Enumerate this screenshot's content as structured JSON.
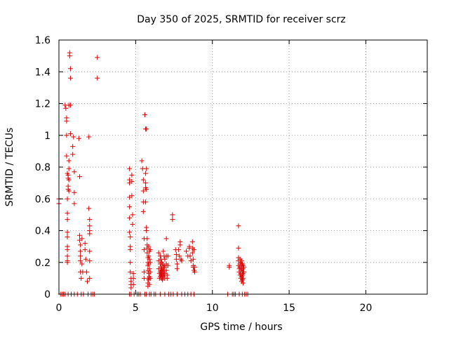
{
  "chart_data": {
    "type": "scatter",
    "title": "Day 350 of 2025, SRMTID for receiver scrz",
    "xlabel": "GPS time / hours",
    "ylabel": "SRMTID / TECUs",
    "xlim": [
      0,
      24
    ],
    "ylim": [
      0,
      1.6
    ],
    "xticks": [
      0,
      5,
      10,
      15,
      20
    ],
    "xtick_labels": [
      "0",
      "5",
      "10",
      "15",
      "20"
    ],
    "yticks": [
      0,
      0.2,
      0.4,
      0.6,
      0.8,
      1.0,
      1.2,
      1.4,
      1.6
    ],
    "ytick_labels": [
      "0",
      "0.2",
      "0.4",
      "0.6",
      "0.8",
      "1",
      "1.2",
      "1.4",
      "1.6"
    ],
    "grid": true,
    "marker": "+",
    "color": "#dd0000",
    "series": [
      {
        "name": "SRMTID",
        "points": [
          [
            0.0,
            0.6
          ],
          [
            0.0,
            0.57
          ],
          [
            0.1,
            0.0
          ],
          [
            0.2,
            0.0
          ],
          [
            0.3,
            0.0
          ],
          [
            0.4,
            0.0
          ],
          [
            0.4,
            1.19
          ],
          [
            0.45,
            1.17
          ],
          [
            0.5,
            1.11
          ],
          [
            0.5,
            1.09
          ],
          [
            0.5,
            1.0
          ],
          [
            0.5,
            0.87
          ],
          [
            0.55,
            0.76
          ],
          [
            0.55,
            0.6
          ],
          [
            0.55,
            0.51
          ],
          [
            0.55,
            0.47
          ],
          [
            0.55,
            0.39
          ],
          [
            0.55,
            0.36
          ],
          [
            0.55,
            0.3
          ],
          [
            0.55,
            0.28
          ],
          [
            0.55,
            0.24
          ],
          [
            0.55,
            0.21
          ],
          [
            0.55,
            0.2
          ],
          [
            0.6,
            0.75
          ],
          [
            0.6,
            0.73
          ],
          [
            0.6,
            0.68
          ],
          [
            0.6,
            0.66
          ],
          [
            0.6,
            0.0
          ],
          [
            0.65,
            1.19
          ],
          [
            0.65,
            0.84
          ],
          [
            0.65,
            0.79
          ],
          [
            0.65,
            0.72
          ],
          [
            0.65,
            0.65
          ],
          [
            0.7,
            1.5
          ],
          [
            0.7,
            1.52
          ],
          [
            0.75,
            1.42
          ],
          [
            0.75,
            1.36
          ],
          [
            0.75,
            1.19
          ],
          [
            0.75,
            1.01
          ],
          [
            0.8,
            0.0
          ],
          [
            0.9,
            0.88
          ],
          [
            0.9,
            0.93
          ],
          [
            0.95,
            0.99
          ],
          [
            1.0,
            0.77
          ],
          [
            1.0,
            0.64
          ],
          [
            1.0,
            0.57
          ],
          [
            1.0,
            0.0
          ],
          [
            1.2,
            0.0
          ],
          [
            1.3,
            0.98
          ],
          [
            1.35,
            0.74
          ],
          [
            1.35,
            0.37
          ],
          [
            1.35,
            0.34
          ],
          [
            1.4,
            0.31
          ],
          [
            1.4,
            0.27
          ],
          [
            1.4,
            0.24
          ],
          [
            1.4,
            0.21
          ],
          [
            1.4,
            0.14
          ],
          [
            1.45,
            0.1
          ],
          [
            1.45,
            0.0
          ],
          [
            1.5,
            0.35
          ],
          [
            1.5,
            0.19
          ],
          [
            1.55,
            0.14
          ],
          [
            1.6,
            0.0
          ],
          [
            1.7,
            0.32
          ],
          [
            1.7,
            0.28
          ],
          [
            1.75,
            0.22
          ],
          [
            1.8,
            0.14
          ],
          [
            1.85,
            0.08
          ],
          [
            1.9,
            0.0
          ],
          [
            1.95,
            0.99
          ],
          [
            1.95,
            0.54
          ],
          [
            2.0,
            0.47
          ],
          [
            2.0,
            0.43
          ],
          [
            2.0,
            0.4
          ],
          [
            2.0,
            0.38
          ],
          [
            2.0,
            0.27
          ],
          [
            2.0,
            0.21
          ],
          [
            2.0,
            0.1
          ],
          [
            2.1,
            0.0
          ],
          [
            2.2,
            0.0
          ],
          [
            2.3,
            0.0
          ],
          [
            2.5,
            1.49
          ],
          [
            2.5,
            1.36
          ],
          [
            4.6,
            0.79
          ],
          [
            4.6,
            0.72
          ],
          [
            4.6,
            0.7
          ],
          [
            4.6,
            0.61
          ],
          [
            4.6,
            0.55
          ],
          [
            4.6,
            0.48
          ],
          [
            4.6,
            0.39
          ],
          [
            4.6,
            0.0
          ],
          [
            4.65,
            0.36
          ],
          [
            4.65,
            0.3
          ],
          [
            4.65,
            0.28
          ],
          [
            4.65,
            0.2
          ],
          [
            4.65,
            0.14
          ],
          [
            4.7,
            0.1
          ],
          [
            4.7,
            0.08
          ],
          [
            4.7,
            0.06
          ],
          [
            4.7,
            0.04
          ],
          [
            4.7,
            0.0
          ],
          [
            4.75,
            0.75
          ],
          [
            4.75,
            0.71
          ],
          [
            4.75,
            0.62
          ],
          [
            4.8,
            0.5
          ],
          [
            4.8,
            0.44
          ],
          [
            4.85,
            0.13
          ],
          [
            4.85,
            0.1
          ],
          [
            4.85,
            0.06
          ],
          [
            4.9,
            0.0
          ],
          [
            5.1,
            0.0
          ],
          [
            5.2,
            0.0
          ],
          [
            5.3,
            0.0
          ],
          [
            5.4,
            0.84
          ],
          [
            5.45,
            0.79
          ],
          [
            5.5,
            0.72
          ],
          [
            5.5,
            0.65
          ],
          [
            5.5,
            0.58
          ],
          [
            5.5,
            0.52
          ],
          [
            5.55,
            0.35
          ],
          [
            5.55,
            0.28
          ],
          [
            5.55,
            0.14
          ],
          [
            5.55,
            0.1
          ],
          [
            5.6,
            0.0
          ],
          [
            5.6,
            1.13
          ],
          [
            5.65,
            1.04
          ],
          [
            5.65,
            0.76
          ],
          [
            5.65,
            0.7
          ],
          [
            5.65,
            0.67
          ],
          [
            5.65,
            0.58
          ],
          [
            5.7,
            1.04
          ],
          [
            5.7,
            0.79
          ],
          [
            5.7,
            0.66
          ],
          [
            5.7,
            0.42
          ],
          [
            5.7,
            0.4
          ],
          [
            5.7,
            0.0
          ],
          [
            5.75,
            0.35
          ],
          [
            5.75,
            0.31
          ],
          [
            5.75,
            0.29
          ],
          [
            5.75,
            0.26
          ],
          [
            5.8,
            0.23
          ],
          [
            5.8,
            0.2
          ],
          [
            5.8,
            0.18
          ],
          [
            5.8,
            0.15
          ],
          [
            5.8,
            0.1
          ],
          [
            5.8,
            0.07
          ],
          [
            5.8,
            0.05
          ],
          [
            5.85,
            0.3
          ],
          [
            5.85,
            0.24
          ],
          [
            5.85,
            0.19
          ],
          [
            5.85,
            0.13
          ],
          [
            5.85,
            0.09
          ],
          [
            5.9,
            0.27
          ],
          [
            5.9,
            0.22
          ],
          [
            5.9,
            0.16
          ],
          [
            5.9,
            0.11
          ],
          [
            5.9,
            0.06
          ],
          [
            5.9,
            0.0
          ],
          [
            5.95,
            0.28
          ],
          [
            5.95,
            0.2
          ],
          [
            5.95,
            0.14
          ],
          [
            5.95,
            0.1
          ],
          [
            6.0,
            0.0
          ],
          [
            6.2,
            0.0
          ],
          [
            6.3,
            0.0
          ],
          [
            6.5,
            0.26
          ],
          [
            6.5,
            0.21
          ],
          [
            6.5,
            0.16
          ],
          [
            6.55,
            0.13
          ],
          [
            6.55,
            0.1
          ],
          [
            6.6,
            0.24
          ],
          [
            6.6,
            0.19
          ],
          [
            6.6,
            0.14
          ],
          [
            6.6,
            0.11
          ],
          [
            6.6,
            0.0
          ],
          [
            6.65,
            0.22
          ],
          [
            6.65,
            0.17
          ],
          [
            6.65,
            0.15
          ],
          [
            6.65,
            0.12
          ],
          [
            6.7,
            0.2
          ],
          [
            6.7,
            0.16
          ],
          [
            6.7,
            0.13
          ],
          [
            6.7,
            0.1
          ],
          [
            6.75,
            0.19
          ],
          [
            6.75,
            0.15
          ],
          [
            6.75,
            0.12
          ],
          [
            6.75,
            0.09
          ],
          [
            6.8,
            0.27
          ],
          [
            6.8,
            0.17
          ],
          [
            6.8,
            0.14
          ],
          [
            6.8,
            0.11
          ],
          [
            6.85,
            0.24
          ],
          [
            6.85,
            0.18
          ],
          [
            6.85,
            0.15
          ],
          [
            6.85,
            0.12
          ],
          [
            6.9,
            0.22
          ],
          [
            6.9,
            0.17
          ],
          [
            6.9,
            0.13
          ],
          [
            6.9,
            0.1
          ],
          [
            6.9,
            0.0
          ],
          [
            7.0,
            0.35
          ],
          [
            7.0,
            0.24
          ],
          [
            7.0,
            0.19
          ],
          [
            7.0,
            0.15
          ],
          [
            7.05,
            0.12
          ],
          [
            7.05,
            0.1
          ],
          [
            7.1,
            0.24
          ],
          [
            7.1,
            0.18
          ],
          [
            7.15,
            0.0
          ],
          [
            7.3,
            0.0
          ],
          [
            7.4,
            0.5
          ],
          [
            7.4,
            0.47
          ],
          [
            7.45,
            0.0
          ],
          [
            7.6,
            0.28
          ],
          [
            7.65,
            0.25
          ],
          [
            7.65,
            0.22
          ],
          [
            7.7,
            0.19
          ],
          [
            7.7,
            0.16
          ],
          [
            7.7,
            0.0
          ],
          [
            7.8,
            0.28
          ],
          [
            7.85,
            0.24
          ],
          [
            7.9,
            0.33
          ],
          [
            7.9,
            0.31
          ],
          [
            7.95,
            0.22
          ],
          [
            8.0,
            0.21
          ],
          [
            8.0,
            0.0
          ],
          [
            8.2,
            0.0
          ],
          [
            8.3,
            0.27
          ],
          [
            8.4,
            0.24
          ],
          [
            8.4,
            0.0
          ],
          [
            8.5,
            0.3
          ],
          [
            8.5,
            0.29
          ],
          [
            8.55,
            0.24
          ],
          [
            8.6,
            0.21
          ],
          [
            8.6,
            0.0
          ],
          [
            8.7,
            0.33
          ],
          [
            8.7,
            0.29
          ],
          [
            8.7,
            0.26
          ],
          [
            8.75,
            0.22
          ],
          [
            8.75,
            0.18
          ],
          [
            8.75,
            0.17
          ],
          [
            8.8,
            0.15
          ],
          [
            8.8,
            0.28
          ],
          [
            8.8,
            0.0
          ],
          [
            8.85,
            0.17
          ],
          [
            8.85,
            0.14
          ],
          [
            11.0,
            0.0
          ],
          [
            11.1,
            0.18
          ],
          [
            11.1,
            0.17
          ],
          [
            11.3,
            0.0
          ],
          [
            11.4,
            0.0
          ],
          [
            11.5,
            0.0
          ],
          [
            11.7,
            0.43
          ],
          [
            11.7,
            0.29
          ],
          [
            11.7,
            0.23
          ],
          [
            11.7,
            0.21
          ],
          [
            11.7,
            0.18
          ],
          [
            11.75,
            0.16
          ],
          [
            11.75,
            0.14
          ],
          [
            11.75,
            0.0
          ],
          [
            11.8,
            0.22
          ],
          [
            11.8,
            0.19
          ],
          [
            11.8,
            0.17
          ],
          [
            11.8,
            0.12
          ],
          [
            11.85,
            0.2
          ],
          [
            11.85,
            0.15
          ],
          [
            11.85,
            0.13
          ],
          [
            11.85,
            0.1
          ],
          [
            11.9,
            0.21
          ],
          [
            11.9,
            0.18
          ],
          [
            11.9,
            0.16
          ],
          [
            11.9,
            0.11
          ],
          [
            11.9,
            0.08
          ],
          [
            11.95,
            0.19
          ],
          [
            11.95,
            0.14
          ],
          [
            11.95,
            0.12
          ],
          [
            11.95,
            0.09
          ],
          [
            11.95,
            0.0
          ],
          [
            12.0,
            0.18
          ],
          [
            12.0,
            0.16
          ],
          [
            12.0,
            0.13
          ],
          [
            12.0,
            0.1
          ],
          [
            12.0,
            0.07
          ],
          [
            12.05,
            0.17
          ],
          [
            12.05,
            0.14
          ],
          [
            12.1,
            0.0
          ],
          [
            12.2,
            0.0
          ],
          [
            12.3,
            0.0
          ]
        ]
      }
    ]
  }
}
